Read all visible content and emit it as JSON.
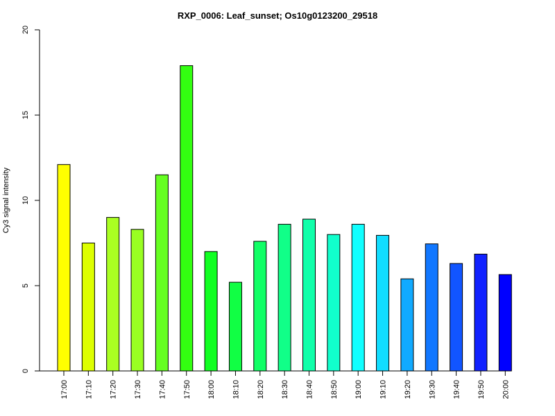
{
  "chart_data": {
    "type": "bar",
    "title": "RXP_0006: Leaf_sunset; Os10g0123200_29518",
    "xlabel": "",
    "ylabel": "Cy3 signal intensity",
    "ylim": [
      0,
      20
    ],
    "yticks": [
      0,
      5,
      10,
      15,
      20
    ],
    "categories": [
      "17:00",
      "17:10",
      "17:20",
      "17:30",
      "17:40",
      "17:50",
      "18:00",
      "18:10",
      "18:20",
      "18:30",
      "18:40",
      "18:50",
      "19:00",
      "19:10",
      "19:20",
      "19:30",
      "19:40",
      "19:50",
      "20:00"
    ],
    "values": [
      12.1,
      7.5,
      9.0,
      8.3,
      11.5,
      17.9,
      7.0,
      5.2,
      7.6,
      8.6,
      8.9,
      8.0,
      8.6,
      7.95,
      5.4,
      7.45,
      6.3,
      6.85,
      5.65
    ],
    "colors": [
      "#FFFF00",
      "#DDFF00",
      "#AAFF22",
      "#99FF22",
      "#66FF22",
      "#33FF11",
      "#11FF22",
      "#11FF44",
      "#11FF66",
      "#11FF88",
      "#11FFAA",
      "#11FFCC",
      "#11FFFF",
      "#11DDFF",
      "#11AAFF",
      "#1177FF",
      "#1155FF",
      "#1122FF",
      "#0000FF"
    ],
    "grid": false,
    "legend": "none"
  }
}
